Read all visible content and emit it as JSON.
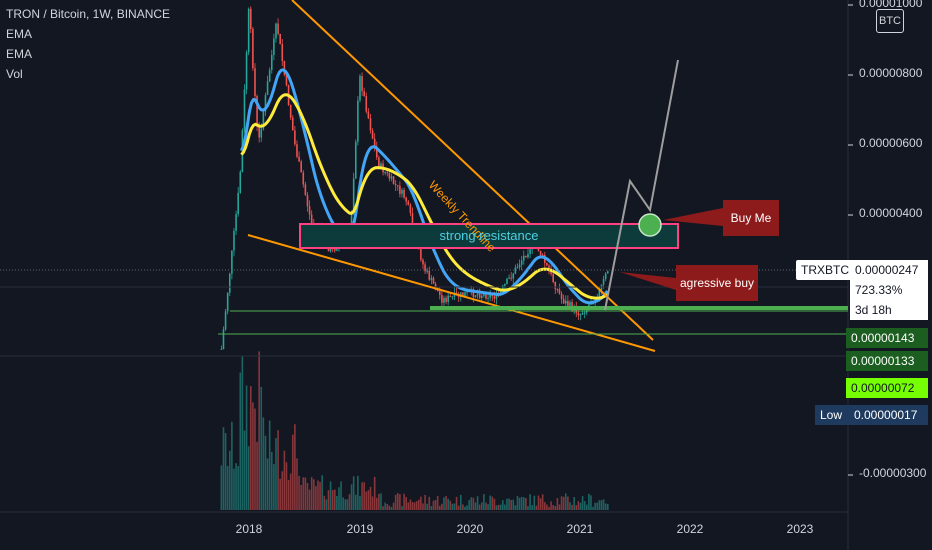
{
  "legend": {
    "title": "TRON / Bitcoin, 1W, BINANCE",
    "indicators": [
      "EMA",
      "EMA",
      "Vol"
    ]
  },
  "currency_badge": "BTC",
  "price_axis": {
    "ticks": [
      "0.00001000",
      "0.00000800",
      "0.00000600",
      "0.00000400",
      "-0.00000300"
    ]
  },
  "time_axis": {
    "ticks": [
      "2018",
      "2019",
      "2020",
      "2021",
      "2022",
      "2023"
    ]
  },
  "price_tags": {
    "symbol": "TRXBTC",
    "last": "0.00000247",
    "change": "723.33%",
    "countdown": "3d 18h",
    "level_1": "0.00000143",
    "level_2": "0.00000133",
    "level_3": "0.00000072",
    "low_label": "Low",
    "low_value": "0.00000017"
  },
  "annotations": {
    "trendline_label": "Weekly Trendline",
    "resistance_label": "strong resistance",
    "buy_me": "Buy Me",
    "aggressive_buy": "agressive buy"
  },
  "colors": {
    "background": "#131722",
    "trendline": "#ff9800",
    "ema_fast": "#42a5f5",
    "ema_slow": "#ffeb3b",
    "resistance_border": "#ff4081",
    "resistance_fill": "#0d3b3b",
    "callout": "#8e1b1b",
    "support_green": "#4caf50",
    "tag_green": "#1b5e20",
    "tag_bright": "#76ff03",
    "tag_low": "#1e3a5f"
  },
  "chart_data": {
    "type": "candlestick",
    "title": "TRON / Bitcoin, 1W, BINANCE",
    "x_label": "",
    "y_label": "",
    "x_range": [
      "2017-09",
      "2023-03"
    ],
    "y_range": [
      1.7e-07,
      1e-05
    ],
    "grid": false,
    "series_shown": [
      "price candles",
      "EMA",
      "EMA",
      "Vol"
    ],
    "price_path": [
      [
        "2017-10",
        2e-07
      ],
      [
        "2017-12",
        5e-06
      ],
      [
        "2018-01",
        1e-05
      ],
      [
        "2018-02",
        6e-06
      ],
      [
        "2018-04",
        9.5e-06
      ],
      [
        "2018-06",
        6e-06
      ],
      [
        "2018-08",
        3.5e-06
      ],
      [
        "2018-10",
        3e-06
      ],
      [
        "2018-12",
        3.5e-06
      ],
      [
        "2019-01",
        8e-06
      ],
      [
        "2019-03",
        5.5e-06
      ],
      [
        "2019-06",
        4.5e-06
      ],
      [
        "2019-08",
        2.5e-06
      ],
      [
        "2019-10",
        1.6e-06
      ],
      [
        "2020-01",
        1.8e-06
      ],
      [
        "2020-04",
        1.7e-06
      ],
      [
        "2020-08",
        3.3e-06
      ],
      [
        "2020-11",
        1.6e-06
      ],
      [
        "2021-01",
        1.2e-06
      ],
      [
        "2021-03",
        1.8e-06
      ],
      [
        "2021-04",
        2.47e-06
      ]
    ]
  }
}
